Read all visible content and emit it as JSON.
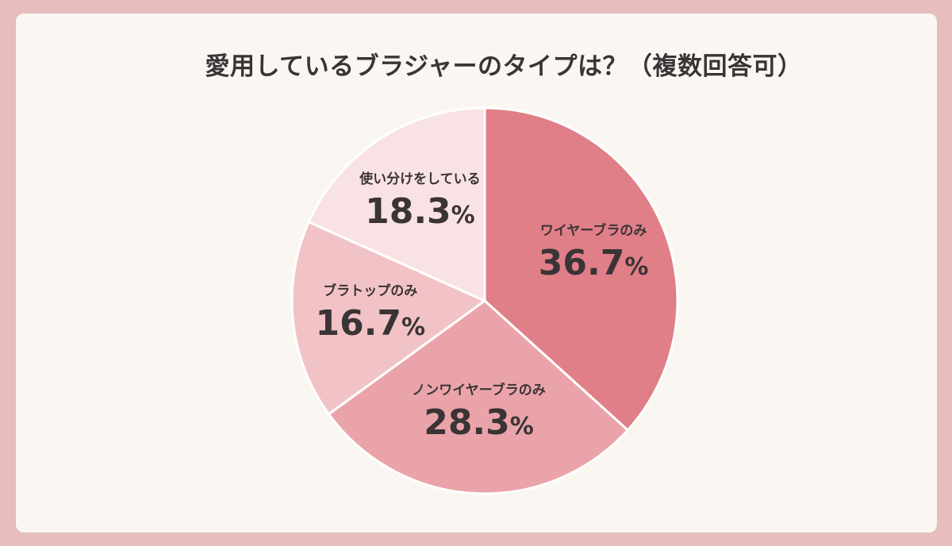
{
  "title": "愛用しているブラジャーのタイプは？（複数回答可）",
  "chart_data": {
    "type": "pie",
    "title": "愛用しているブラジャーのタイプは？（複数回答可）",
    "start": "12 o'clock",
    "direction": "clockwise",
    "slices": [
      {
        "label": "ワイヤーブラのみ",
        "value": 36.7,
        "display": "36.7",
        "unit": "%",
        "color": "#e07f88"
      },
      {
        "label": "ノンワイヤーブラのみ",
        "value": 28.3,
        "display": "28.3",
        "unit": "%",
        "color": "#eaa4a9"
      },
      {
        "label": "ブラトップのみ",
        "value": 16.7,
        "display": "16.7",
        "unit": "%",
        "color": "#f2c3c6"
      },
      {
        "label": "使い分けをしている",
        "value": 18.3,
        "display": "18.3",
        "unit": "%",
        "color": "#f9e2e3"
      }
    ]
  }
}
